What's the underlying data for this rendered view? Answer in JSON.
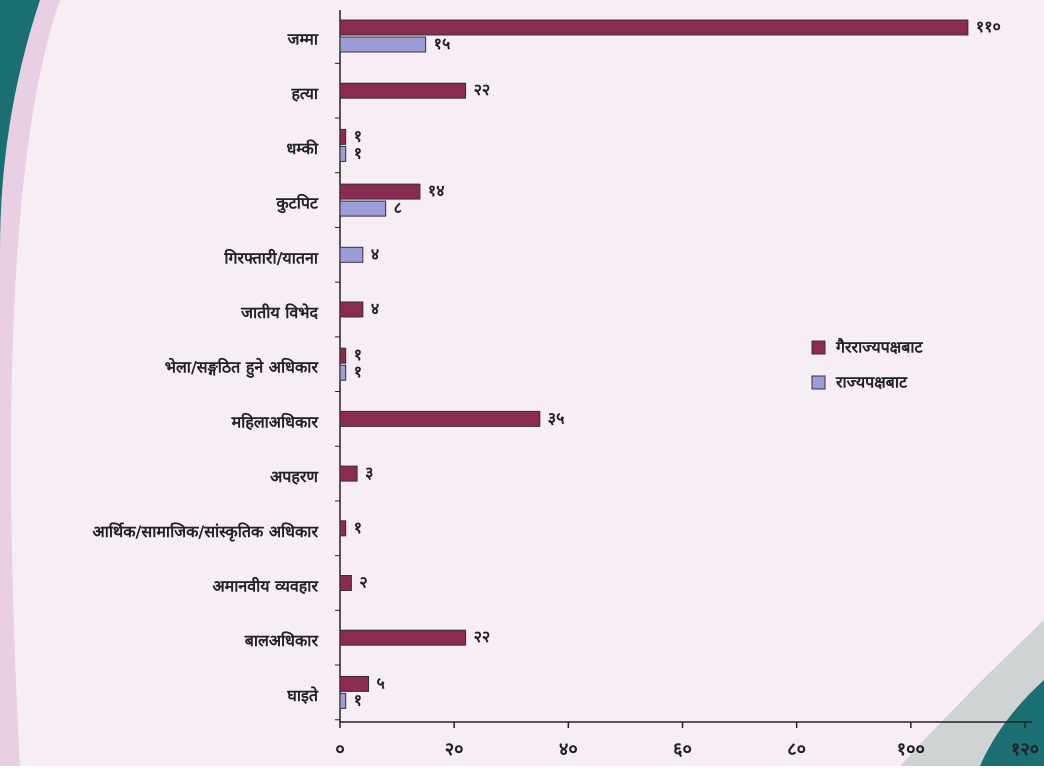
{
  "chart_data": {
    "type": "bar",
    "orientation": "horizontal",
    "categories": [
      "जम्मा",
      "हत्या",
      "धम्की",
      "कुटपिट",
      "गिरफ्तारी/यातना",
      "जातीय विभेद",
      "भेला/सङ्गठित हुने अधिकार",
      "महिलाअधिकार",
      "अपहरण",
      "आर्थिक/सामाजिक/सांस्कृतिक अधिकार",
      "अमानवीय व्यवहार",
      "बालअधिकार",
      "घाइते"
    ],
    "series": [
      {
        "name": "गैरराज्यपक्षबाट",
        "color": "#8c2b52",
        "values": [
          110,
          22,
          1,
          14,
          null,
          4,
          1,
          35,
          3,
          1,
          2,
          22,
          5
        ],
        "value_labels": [
          "११०",
          "२२",
          "१",
          "१४",
          null,
          "४",
          "१",
          "३५",
          "३",
          "१",
          "२",
          "२२",
          "५"
        ]
      },
      {
        "name": "राज्यपक्षबाट",
        "color": "#9c9cd6",
        "values": [
          15,
          null,
          1,
          8,
          4,
          null,
          1,
          null,
          null,
          null,
          null,
          null,
          1
        ],
        "value_labels": [
          "१५",
          null,
          "१",
          "८",
          "४",
          null,
          "१",
          null,
          null,
          null,
          null,
          null,
          "१"
        ]
      }
    ],
    "xlim": [
      0,
      120
    ],
    "xticks": [
      {
        "value": 0,
        "label": "०"
      },
      {
        "value": 20,
        "label": "२०"
      },
      {
        "value": 40,
        "label": "४०"
      },
      {
        "value": 60,
        "label": "६०"
      },
      {
        "value": 80,
        "label": "८०"
      },
      {
        "value": 100,
        "label": "१००"
      },
      {
        "value": 120,
        "label": "१२०"
      }
    ],
    "legend": "right"
  }
}
